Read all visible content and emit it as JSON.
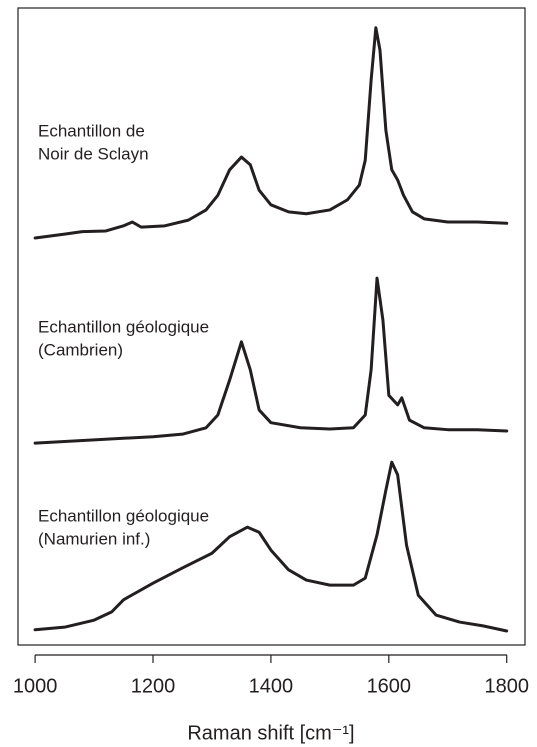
{
  "chart_data": {
    "type": "line",
    "xlabel": "Raman shift [cm⁻¹]",
    "xlim": [
      971,
      1831
    ],
    "xticks": [
      1000,
      1200,
      1400,
      1600,
      1800
    ],
    "ylim": [
      0,
      100
    ],
    "annotations": [
      [
        "Echantillon de",
        "Noir de Sclayn"
      ],
      [
        "Echantillon géologique",
        "(Cambrien)"
      ],
      [
        "Echantillon géologique",
        "(Namurien inf.)"
      ]
    ],
    "series": [
      {
        "color": "#231f20",
        "x": [
          1000,
          1050,
          1080,
          1120,
          1150,
          1165,
          1180,
          1220,
          1260,
          1290,
          1310,
          1330,
          1350,
          1365,
          1380,
          1400,
          1430,
          1460,
          1500,
          1530,
          1550,
          1560,
          1570,
          1578,
          1585,
          1595,
          1605,
          1615,
          1625,
          1640,
          1660,
          1700,
          1750,
          1800
        ],
        "values": [
          63.9,
          64.5,
          64.9,
          65.0,
          65.8,
          66.4,
          65.6,
          65.8,
          66.7,
          68.3,
          70.6,
          74.6,
          76.6,
          75.4,
          71.4,
          69.1,
          68.0,
          67.7,
          68.3,
          69.9,
          72.2,
          76.1,
          88.7,
          96.9,
          93.4,
          80.8,
          74.6,
          73.0,
          70.6,
          68.0,
          66.9,
          66.4,
          66.4,
          66.2
        ]
      },
      {
        "color": "#231f20",
        "x": [
          1000,
          1100,
          1200,
          1250,
          1290,
          1310,
          1330,
          1350,
          1365,
          1380,
          1400,
          1450,
          1500,
          1540,
          1560,
          1570,
          1580,
          1590,
          1600,
          1615,
          1622,
          1635,
          1660,
          1700,
          1750,
          1800
        ],
        "values": [
          31.7,
          32.2,
          32.7,
          33.1,
          34.1,
          36.1,
          41.6,
          47.6,
          43.2,
          36.9,
          34.9,
          34.1,
          33.9,
          34.1,
          36.1,
          43.2,
          57.6,
          51.0,
          39.2,
          37.7,
          38.8,
          35.3,
          34.1,
          33.8,
          33.8,
          33.6
        ]
      },
      {
        "color": "#231f20",
        "x": [
          1000,
          1050,
          1100,
          1130,
          1150,
          1200,
          1250,
          1300,
          1330,
          1360,
          1380,
          1400,
          1430,
          1460,
          1500,
          1540,
          1560,
          1580,
          1595,
          1605,
          1615,
          1630,
          1650,
          1680,
          1720,
          1760,
          1800
        ],
        "values": [
          2.4,
          2.8,
          3.9,
          5.2,
          7.1,
          9.7,
          12.1,
          14.4,
          17.0,
          18.5,
          17.7,
          14.9,
          11.8,
          10.2,
          9.4,
          9.4,
          10.5,
          17.3,
          24.3,
          28.7,
          26.7,
          15.7,
          7.8,
          4.7,
          3.6,
          3.0,
          2.2
        ]
      }
    ]
  }
}
